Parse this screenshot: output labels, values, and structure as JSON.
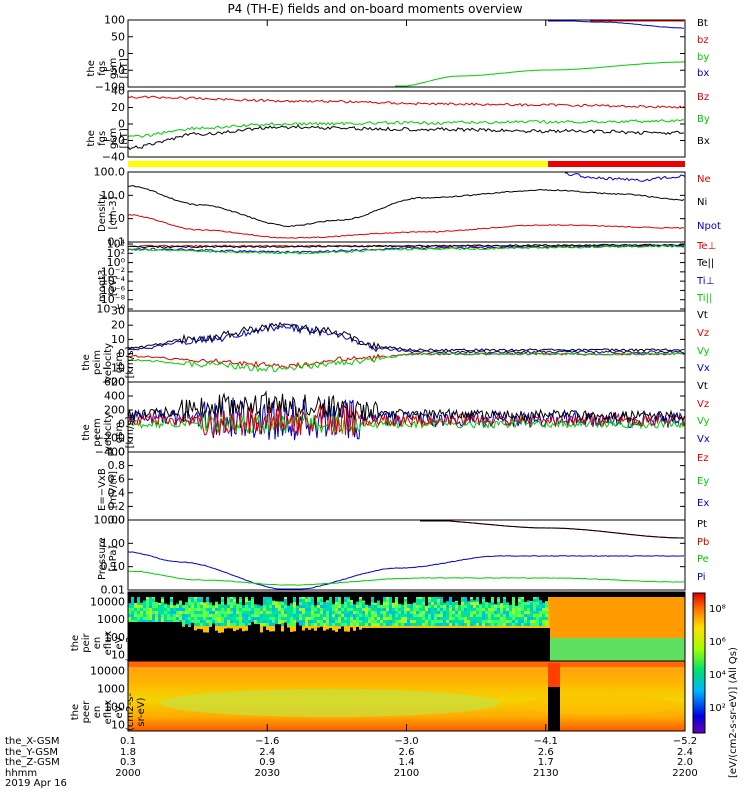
{
  "title": "P4 (TH-E) fields and on-board moments overview",
  "panels": [
    {
      "id": "fgs_gsm",
      "ylabel": [
        "the",
        "fgs",
        "gsm",
        "[nT]"
      ],
      "yticks": [
        "100",
        "50",
        "0",
        "−50",
        "−100"
      ],
      "ylim": [
        -100,
        100
      ],
      "legend": [
        {
          "t": "Bt",
          "c": "#000000"
        },
        {
          "t": "bz",
          "c": "#dd0000"
        },
        {
          "t": "by",
          "c": "#00cc00"
        },
        {
          "t": "bx",
          "c": "#0000cc"
        }
      ]
    },
    {
      "id": "fgs_dsl",
      "ylabel": [
        "the",
        "fgs",
        "gsm",
        "[nT]"
      ],
      "yticks": [
        "40",
        "20",
        "0",
        "−20",
        "−40"
      ],
      "ylim": [
        -40,
        40
      ],
      "legend": [
        {
          "t": "Bz",
          "c": "#dd0000"
        },
        {
          "t": "By",
          "c": "#00cc00"
        },
        {
          "t": "Bx",
          "c": "#000000"
        }
      ]
    },
    {
      "id": "density",
      "ylabel": [
        "Density",
        "[cm-3]"
      ],
      "yticks": [
        "100.0",
        "10.0",
        "1.0",
        "0.1"
      ],
      "ylim": [
        0.1,
        100
      ],
      "log": true,
      "legend": [
        {
          "t": "Ne",
          "c": "#dd0000"
        },
        {
          "t": "Ni",
          "c": "#000000"
        },
        {
          "t": "Npot",
          "c": "#0000cc"
        }
      ]
    },
    {
      "id": "temp",
      "ylabel": [
        "moqt3",
        "[eV]"
      ],
      "yticks": [
        "10⁴",
        "10²",
        "10⁰",
        "10⁻²",
        "10⁻⁴",
        "10⁻⁶",
        "10⁻⁸",
        "10⁻¹⁰"
      ],
      "ylim": [
        "1e-10",
        "1e4"
      ],
      "log": true,
      "legend": [
        {
          "t": "Te⊥",
          "c": "#dd0000"
        },
        {
          "t": "Te||",
          "c": "#000000"
        },
        {
          "t": "Ti⊥",
          "c": "#0000cc"
        },
        {
          "t": "Ti||",
          "c": "#00cc00"
        }
      ]
    },
    {
      "id": "peim_v",
      "ylabel": [
        "the",
        "peim",
        "velocity",
        "gsm",
        "[km/s]"
      ],
      "yticks": [
        "30",
        "20",
        "10",
        "0",
        "−10",
        "−20"
      ],
      "ylim": [
        -20,
        30
      ],
      "legend": [
        {
          "t": "Vt",
          "c": "#000000"
        },
        {
          "t": "Vz",
          "c": "#dd0000"
        },
        {
          "t": "Vy",
          "c": "#00cc00"
        },
        {
          "t": "Vx",
          "c": "#0000cc"
        }
      ]
    },
    {
      "id": "peem_v",
      "ylabel": [
        "the",
        "peem",
        "velocity",
        "gsm",
        "[km/s]"
      ],
      "yticks": [
        "600",
        "400",
        "200",
        "0",
        "−200",
        "−400"
      ],
      "ylim": [
        -400,
        600
      ],
      "legend": [
        {
          "t": "Vt",
          "c": "#000000"
        },
        {
          "t": "Vz",
          "c": "#dd0000"
        },
        {
          "t": "Vy",
          "c": "#00cc00"
        },
        {
          "t": "Vx",
          "c": "#0000cc"
        }
      ]
    },
    {
      "id": "efield",
      "ylabel": [
        "E=−VxB",
        "[mV/m]"
      ],
      "yticks": [
        "1.0",
        "0.8",
        "0.6",
        "0.4",
        "0.2",
        "0.0"
      ],
      "ylim": [
        0,
        1
      ],
      "legend": [
        {
          "t": "Ez",
          "c": "#dd0000"
        },
        {
          "t": "Ey",
          "c": "#00cc00"
        },
        {
          "t": "Ex",
          "c": "#0000cc"
        }
      ]
    },
    {
      "id": "pressure",
      "ylabel": [
        "Pressure",
        "[nPa]"
      ],
      "yticks": [
        "10.00",
        "1.00",
        "0.10",
        "0.01"
      ],
      "ylim": [
        0.01,
        10
      ],
      "log": true,
      "legend": [
        {
          "t": "Pt",
          "c": "#000000"
        },
        {
          "t": "Pb",
          "c": "#dd0000"
        },
        {
          "t": "Pe",
          "c": "#00cc00"
        },
        {
          "t": "Pi",
          "c": "#0000cc"
        }
      ]
    },
    {
      "id": "peir",
      "ylabel": [
        "the",
        "peir",
        "en",
        "eflux",
        "eV",
        "(cm2-s-",
        "sr-eV)"
      ],
      "yticks": [
        "10000",
        "1000",
        "100",
        "10"
      ],
      "ylim": [
        10,
        20000
      ],
      "log": true,
      "legend": []
    },
    {
      "id": "peer",
      "ylabel": [
        "the",
        "peer",
        "en",
        "eflux",
        "eV",
        "(cm2-s-",
        "sr-eV)"
      ],
      "yticks": [
        "10000",
        "1000",
        "100",
        "10"
      ],
      "ylim": [
        10,
        20000
      ],
      "log": true,
      "legend": []
    }
  ],
  "colorbar": {
    "label": "[eV/(cm2-s-sr-eV)] (All Qs)",
    "ticks": [
      "10⁸",
      "10⁶",
      "10⁴",
      "10²"
    ]
  },
  "ephemeris": {
    "labels": [
      "the_X-GSM",
      "the_Y-GSM",
      "the_Z-GSM",
      "hhmm",
      "2019 Apr 16"
    ],
    "columns": [
      {
        "x": "0.1",
        "y": "1.8",
        "z": "0.3",
        "t": "2000"
      },
      {
        "x": "−1.6",
        "y": "2.4",
        "z": "0.9",
        "t": "2030"
      },
      {
        "x": "−3.0",
        "y": "2.6",
        "z": "1.4",
        "t": "2100"
      },
      {
        "x": "−4.1",
        "y": "2.6",
        "z": "1.7",
        "t": "2130"
      },
      {
        "x": "−5.2",
        "y": "2.4",
        "z": "2.0",
        "t": "2200"
      }
    ]
  },
  "mode_bar": {
    "yellow": "#ffff00",
    "red": "#ee0000",
    "switch_time": "2130"
  },
  "chart_data": {
    "type": "line",
    "title": "P4 (TH-E) fields and on-board moments overview",
    "x": [
      "2000",
      "2030",
      "2100",
      "2130",
      "2200"
    ],
    "series": [
      {
        "panel": "fgs_gsm",
        "name": "Bt",
        "values": [
          null,
          null,
          null,
          null,
          null
        ]
      },
      {
        "panel": "fgs_gsm",
        "name": "bz",
        "values": [
          null,
          null,
          null,
          null,
          100
        ]
      },
      {
        "panel": "fgs_gsm",
        "name": "by",
        "values": [
          null,
          null,
          -100,
          -52,
          -32
        ]
      },
      {
        "panel": "fgs_gsm",
        "name": "bx",
        "values": [
          null,
          null,
          null,
          115,
          82
        ]
      },
      {
        "panel": "fgs_dsl",
        "name": "Bz",
        "values": [
          33,
          28,
          25,
          22,
          18
        ]
      },
      {
        "panel": "fgs_dsl",
        "name": "By",
        "values": [
          -18,
          0,
          2,
          3,
          3
        ]
      },
      {
        "panel": "fgs_dsl",
        "name": "Bx",
        "values": [
          -30,
          -3,
          -8,
          -9,
          -12
        ]
      },
      {
        "panel": "density",
        "name": "Ni",
        "values": [
          45,
          1.5,
          8,
          20,
          10
        ]
      },
      {
        "panel": "density",
        "name": "Ne",
        "values": [
          2,
          0.12,
          0.4,
          0.8,
          0.5
        ]
      },
      {
        "panel": "pressure",
        "name": "Pe",
        "values": [
          0.12,
          0.03,
          0.05,
          0.06,
          0.04
        ]
      },
      {
        "panel": "pressure",
        "name": "Pi",
        "values": [
          1.5,
          0.02,
          0.5,
          1.0,
          0.7
        ]
      },
      {
        "panel": "pressure",
        "name": "Pt",
        "values": [
          null,
          null,
          null,
          10,
          6
        ]
      },
      {
        "panel": "pressure",
        "name": "Pb",
        "values": [
          null,
          null,
          null,
          10,
          6
        ]
      },
      {
        "panel": "peim_v",
        "name": "Vt",
        "values": [
          2,
          17,
          4,
          2,
          3
        ]
      },
      {
        "panel": "peim_v",
        "name": "Vx",
        "values": [
          1,
          14,
          3,
          1,
          2
        ]
      },
      {
        "panel": "peim_v",
        "name": "Vz",
        "values": [
          0,
          -7,
          1,
          0,
          0
        ]
      },
      {
        "panel": "peim_v",
        "name": "Vy",
        "values": [
          -4,
          -9,
          0,
          0,
          0
        ]
      }
    ]
  }
}
